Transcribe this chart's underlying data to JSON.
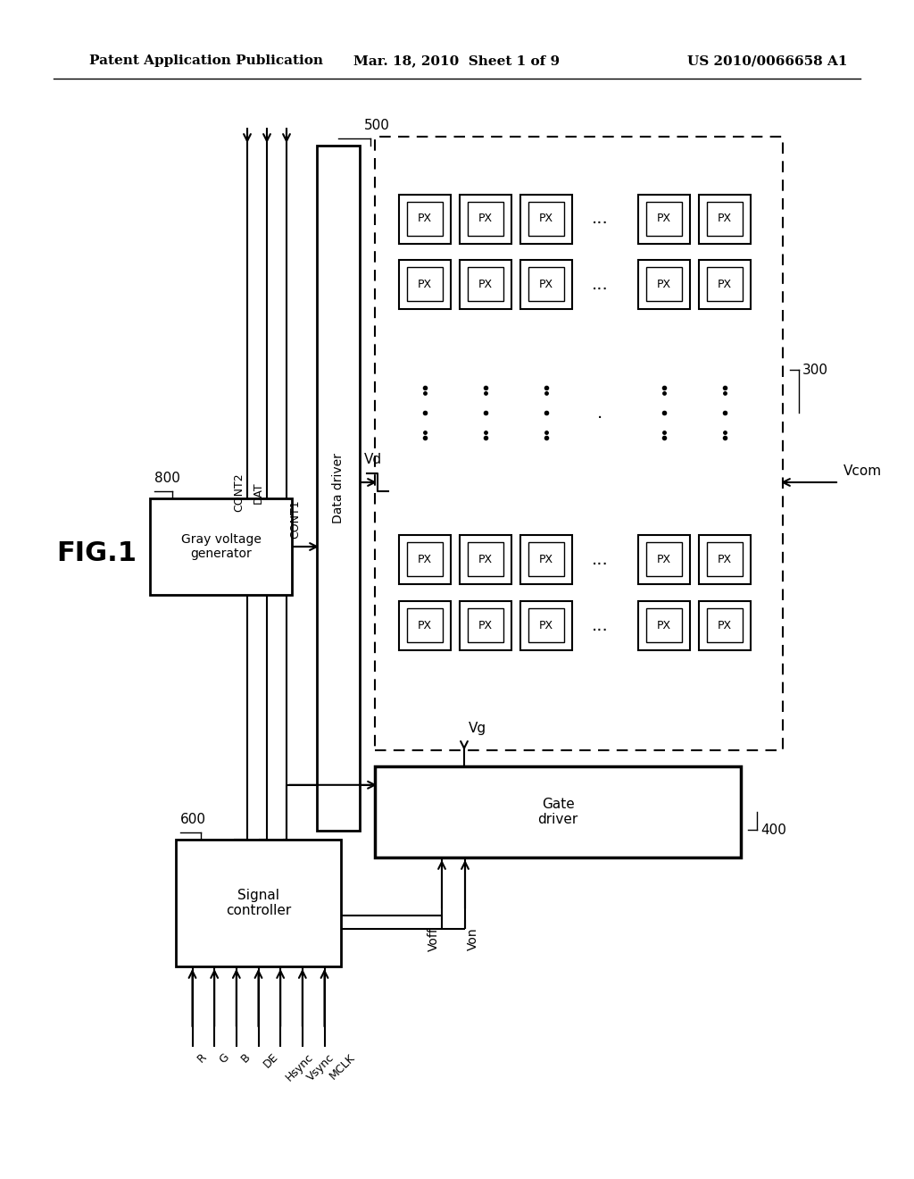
{
  "title_left": "Patent Application Publication",
  "title_center": "Mar. 18, 2010  Sheet 1 of 9",
  "title_right": "US 2010/0066658 A1",
  "fig_label": "FIG.1",
  "background_color": "#ffffff",
  "line_color": "#000000",
  "lw": 1.5
}
